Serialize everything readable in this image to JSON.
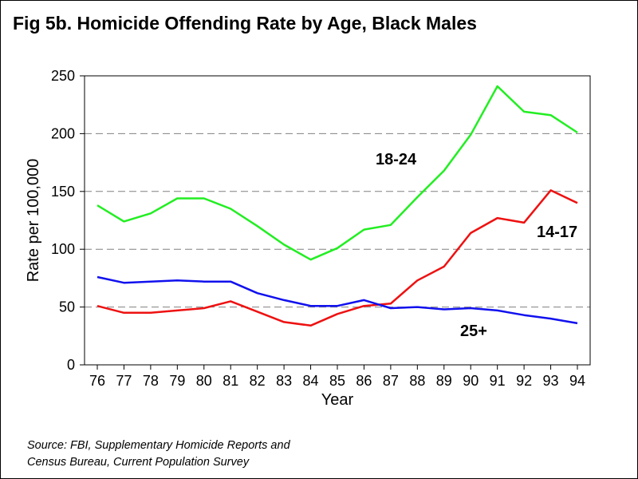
{
  "title": "Fig 5b. Homicide Offending Rate by Age, Black Males",
  "source_lines": [
    "Source:  FBI, Supplementary Homicide Reports and",
    "Census Bureau, Current Population Survey"
  ],
  "chart_data": {
    "type": "line",
    "xlabel": "Year",
    "ylabel": "Rate per 100,000",
    "ylim": [
      0,
      250
    ],
    "yticks": [
      0,
      50,
      100,
      150,
      200,
      250
    ],
    "x": [
      "76",
      "77",
      "78",
      "79",
      "80",
      "81",
      "82",
      "83",
      "84",
      "85",
      "86",
      "87",
      "88",
      "89",
      "90",
      "91",
      "92",
      "93",
      "94"
    ],
    "grid": "horizontal dashed",
    "series": [
      {
        "name": "18-24",
        "color": "#22ee22",
        "values": [
          138,
          124,
          131,
          144,
          144,
          135,
          120,
          104,
          91,
          101,
          117,
          121,
          145,
          168,
          199,
          241,
          219,
          216,
          201
        ]
      },
      {
        "name": "14-17",
        "color": "#ee1111",
        "values": [
          51,
          45,
          45,
          47,
          49,
          55,
          46,
          37,
          34,
          44,
          51,
          53,
          73,
          85,
          114,
          127,
          123,
          151,
          140
        ]
      },
      {
        "name": "25+",
        "color": "#1111ee",
        "values": [
          76,
          71,
          72,
          73,
          72,
          72,
          62,
          56,
          51,
          51,
          56,
          49,
          50,
          48,
          49,
          47,
          43,
          40,
          36
        ]
      }
    ]
  }
}
